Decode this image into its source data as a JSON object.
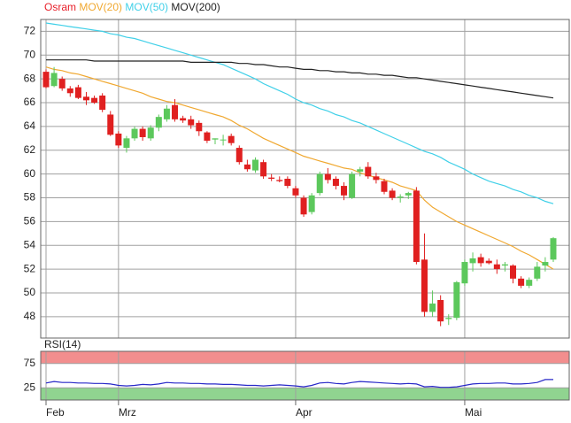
{
  "chart_data": [
    {
      "type": "candlestick",
      "name": "Osram",
      "color": "#e8202a",
      "up_color": "#5cc85c",
      "down_color": "#e02020",
      "categories": [
        "Feb",
        null,
        null,
        null,
        null,
        null,
        null,
        null,
        null,
        "Mrz",
        null,
        null,
        null,
        null,
        null,
        null,
        null,
        null,
        null,
        null,
        null,
        null,
        null,
        null,
        null,
        null,
        null,
        null,
        null,
        null,
        null,
        "Apr",
        null,
        null,
        null,
        null,
        null,
        null,
        null,
        null,
        null,
        null,
        null,
        null,
        null,
        null,
        null,
        null,
        null,
        null,
        null,
        null,
        "Mai",
        null,
        null,
        null,
        null,
        null,
        null,
        null,
        null,
        null,
        null,
        null
      ],
      "open": [
        68.6,
        67.4,
        68.0,
        67.2,
        67.3,
        66.5,
        66.4,
        66.6,
        65.0,
        63.4,
        62.2,
        63.0,
        63.8,
        63.0,
        63.9,
        64.6,
        65.8,
        64.7,
        64.6,
        64.3,
        63.5,
        62.9,
        62.9,
        63.2,
        62.2,
        60.8,
        60.3,
        61.0,
        59.7,
        59.5,
        59.6,
        58.8,
        58.0,
        56.8,
        58.4,
        60.0,
        59.6,
        59.0,
        58.0,
        60.2,
        60.6,
        59.8,
        59.4,
        58.6,
        58.0,
        58.2,
        58.6,
        52.8,
        48.4,
        49.4,
        47.8,
        47.9,
        50.8,
        52.5,
        53.0,
        52.7,
        52.4,
        52.3,
        52.3,
        51.2,
        50.6,
        51.2,
        52.3,
        52.8
      ],
      "high": [
        68.8,
        69.0,
        68.2,
        67.4,
        67.5,
        66.9,
        66.6,
        66.8,
        65.3,
        63.6,
        63.2,
        64.0,
        64.0,
        64.1,
        65.0,
        65.8,
        66.3,
        64.9,
        64.9,
        64.5,
        63.6,
        63.0,
        63.3,
        63.4,
        62.4,
        61.2,
        61.4,
        61.2,
        60.0,
        59.8,
        59.8,
        59.0,
        58.2,
        58.4,
        60.2,
        60.5,
        59.8,
        59.3,
        60.2,
        60.6,
        61.0,
        60.1,
        59.6,
        58.8,
        58.3,
        58.5,
        58.9,
        55.0,
        50.2,
        49.8,
        48.2,
        51.0,
        52.8,
        53.4,
        53.3,
        52.9,
        52.8,
        52.6,
        52.4,
        51.4,
        51.3,
        52.6,
        53.0,
        54.7
      ],
      "low": [
        67.2,
        67.3,
        67.0,
        66.5,
        66.3,
        65.8,
        65.9,
        65.2,
        63.2,
        62.2,
        61.8,
        62.8,
        62.8,
        62.8,
        63.6,
        64.4,
        64.4,
        64.3,
        63.8,
        63.2,
        62.6,
        62.5,
        62.4,
        62.4,
        60.8,
        60.2,
        60.1,
        59.6,
        59.4,
        59.3,
        58.8,
        58.0,
        56.4,
        56.6,
        58.2,
        59.2,
        58.7,
        57.8,
        57.9,
        59.8,
        59.6,
        59.2,
        58.3,
        57.8,
        57.6,
        57.9,
        52.4,
        48.0,
        48.0,
        47.2,
        47.3,
        47.7,
        50.6,
        51.8,
        52.2,
        52.4,
        51.6,
        51.8,
        50.8,
        50.4,
        50.4,
        51.0,
        51.8,
        52.6
      ],
      "close": [
        67.3,
        68.5,
        67.2,
        66.8,
        66.4,
        66.2,
        66.0,
        65.4,
        63.3,
        62.4,
        63.0,
        63.8,
        63.1,
        63.9,
        64.8,
        65.5,
        64.6,
        64.5,
        64.1,
        63.6,
        62.8,
        63.0,
        62.9,
        62.6,
        61.0,
        60.4,
        61.2,
        59.8,
        59.6,
        59.4,
        59.0,
        58.2,
        56.6,
        58.2,
        60.0,
        59.5,
        59.0,
        58.2,
        60.0,
        60.4,
        59.8,
        59.5,
        58.5,
        58.0,
        58.1,
        58.4,
        52.6,
        48.4,
        49.1,
        47.6,
        47.9,
        50.9,
        52.6,
        52.9,
        52.5,
        52.5,
        52.0,
        52.4,
        51.2,
        50.6,
        51.1,
        52.2,
        52.6,
        54.6
      ],
      "series": [
        {
          "name": "MOV(20)",
          "color": "#f0a830",
          "values": [
            69.0,
            68.8,
            68.7,
            68.5,
            68.4,
            68.2,
            68.0,
            67.8,
            67.6,
            67.4,
            67.2,
            67.0,
            66.8,
            66.5,
            66.3,
            66.1,
            66.0,
            65.8,
            65.6,
            65.4,
            65.2,
            65.0,
            64.8,
            64.5,
            64.1,
            63.8,
            63.4,
            63.0,
            62.7,
            62.4,
            62.1,
            61.8,
            61.5,
            61.3,
            61.1,
            60.9,
            60.7,
            60.5,
            60.4,
            60.1,
            59.9,
            59.7,
            59.5,
            59.3,
            59.0,
            58.8,
            58.6,
            57.8,
            57.2,
            56.8,
            56.4,
            56.0,
            55.7,
            55.4,
            55.1,
            54.8,
            54.5,
            54.2,
            53.9,
            53.5,
            53.2,
            52.8,
            52.4,
            52.0
          ]
        },
        {
          "name": "MOV(50)",
          "color": "#40d0e8",
          "values": [
            72.7,
            72.6,
            72.5,
            72.4,
            72.3,
            72.2,
            72.1,
            72.0,
            71.8,
            71.7,
            71.5,
            71.4,
            71.2,
            71.0,
            70.8,
            70.6,
            70.4,
            70.2,
            70.0,
            69.8,
            69.6,
            69.4,
            69.2,
            68.9,
            68.6,
            68.3,
            68.0,
            67.6,
            67.3,
            67.0,
            66.7,
            66.3,
            66.0,
            65.8,
            65.5,
            65.3,
            65.0,
            64.8,
            64.5,
            64.3,
            64.0,
            63.7,
            63.4,
            63.1,
            62.8,
            62.5,
            62.2,
            61.9,
            61.7,
            61.4,
            61.0,
            60.7,
            60.4,
            60.0,
            59.7,
            59.4,
            59.2,
            59.0,
            58.7,
            58.5,
            58.2,
            58.0,
            57.7,
            57.5
          ]
        },
        {
          "name": "MOV(200)",
          "color": "#222222",
          "values": [
            69.6,
            69.6,
            69.6,
            69.6,
            69.6,
            69.6,
            69.5,
            69.5,
            69.5,
            69.5,
            69.5,
            69.5,
            69.5,
            69.5,
            69.5,
            69.5,
            69.5,
            69.5,
            69.4,
            69.4,
            69.4,
            69.4,
            69.4,
            69.4,
            69.3,
            69.3,
            69.2,
            69.2,
            69.1,
            69.0,
            69.0,
            68.9,
            68.8,
            68.8,
            68.7,
            68.7,
            68.6,
            68.6,
            68.5,
            68.5,
            68.4,
            68.4,
            68.3,
            68.3,
            68.2,
            68.1,
            68.1,
            68.0,
            67.9,
            67.8,
            67.7,
            67.6,
            67.5,
            67.4,
            67.3,
            67.2,
            67.1,
            67.0,
            66.9,
            66.8,
            66.7,
            66.6,
            66.5,
            66.4
          ]
        }
      ],
      "ylim": [
        46.2,
        73.0
      ],
      "yticks": [
        48,
        50,
        52,
        54,
        56,
        58,
        60,
        62,
        64,
        66,
        68,
        70,
        72
      ],
      "grid": true
    },
    {
      "type": "line",
      "title": "RSI(14)",
      "color": "#2828c8",
      "values": [
        35,
        38,
        36,
        36,
        35,
        35,
        34,
        34,
        33,
        30,
        29,
        30,
        32,
        31,
        33,
        36,
        35,
        35,
        34,
        34,
        33,
        33,
        32,
        32,
        31,
        30,
        30,
        29,
        30,
        31,
        30,
        29,
        27,
        30,
        35,
        36,
        34,
        33,
        36,
        38,
        37,
        36,
        35,
        34,
        33,
        34,
        33,
        27,
        28,
        26,
        26,
        27,
        30,
        33,
        34,
        34,
        35,
        35,
        33,
        33,
        34,
        36,
        42,
        42
      ],
      "ylim": [
        0,
        100
      ],
      "yticks": [
        25,
        75
      ],
      "grid": true,
      "bands": [
        {
          "from": 75,
          "to": 100,
          "color": "#f07a7a"
        },
        {
          "from": 0,
          "to": 25,
          "color": "#7ccc7c"
        }
      ]
    }
  ]
}
